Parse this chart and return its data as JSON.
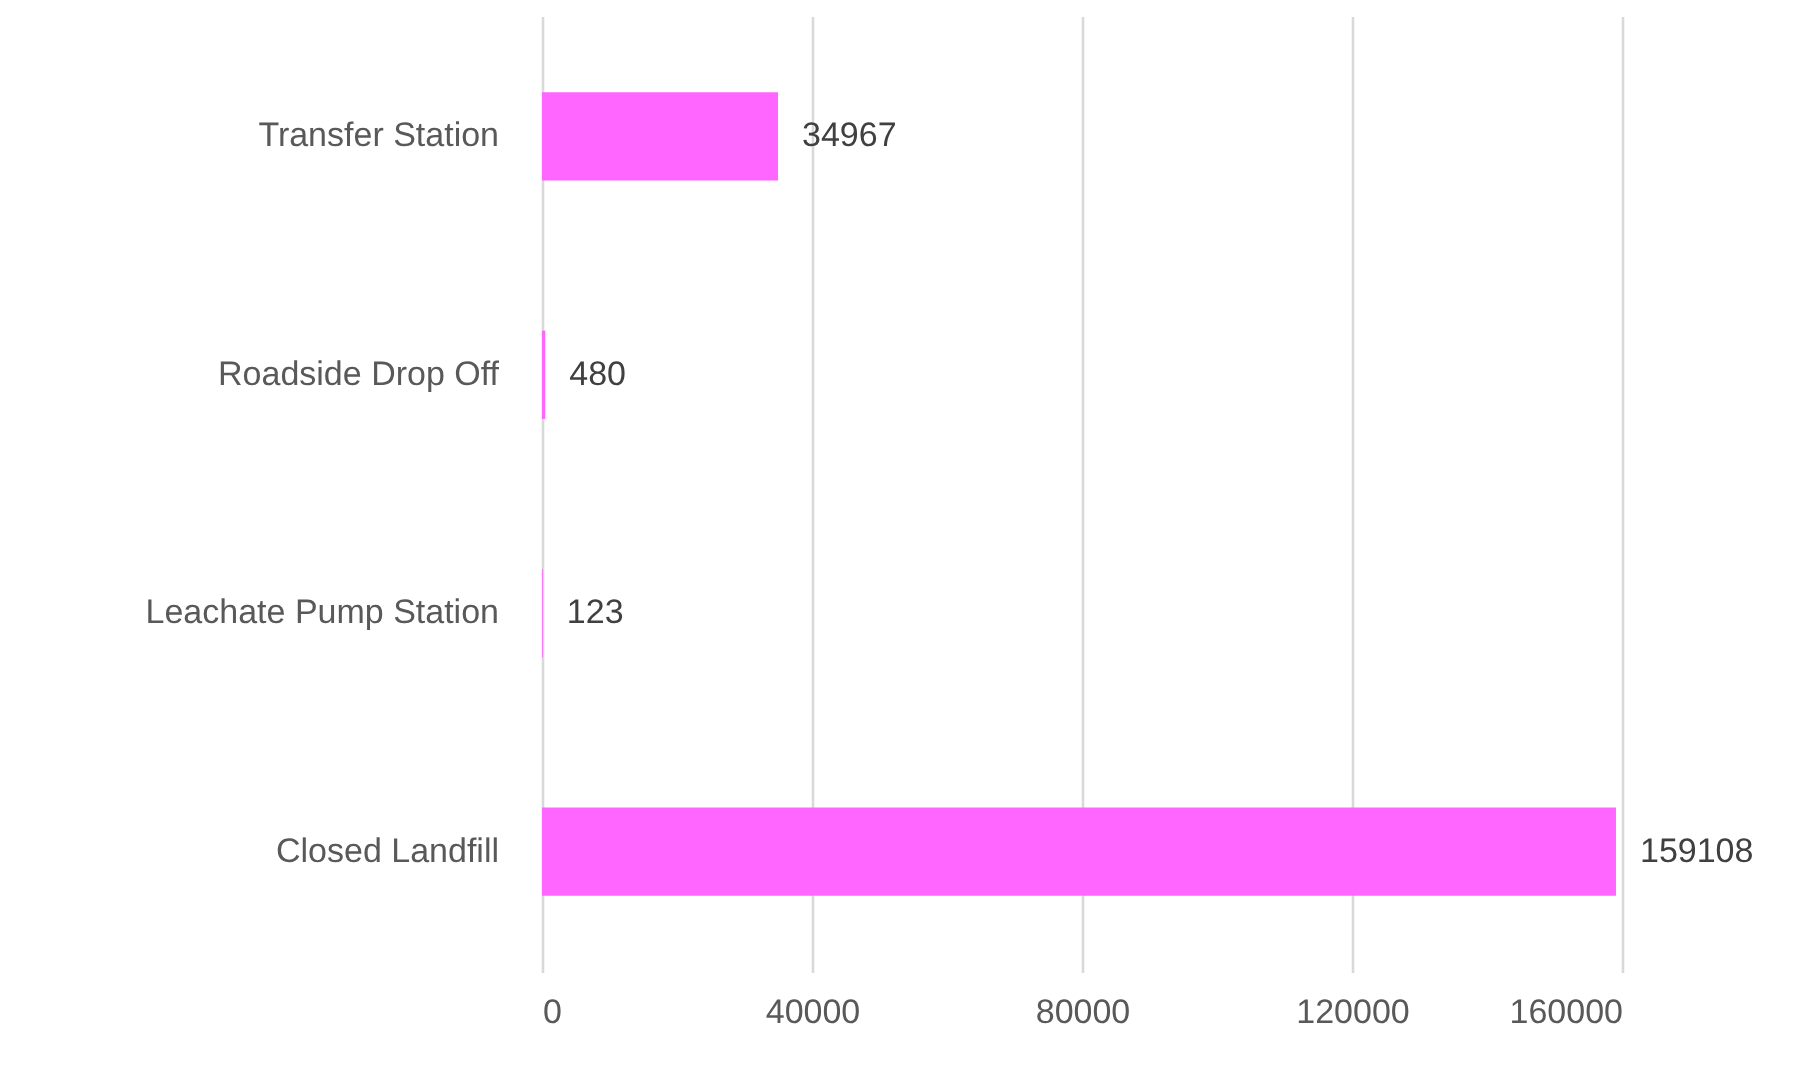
{
  "chart_data": {
    "type": "bar",
    "orientation": "horizontal",
    "categories": [
      "Transfer Station",
      "Roadside Drop Off",
      "Leachate Pump Station",
      "Closed Landfill"
    ],
    "values": [
      34967,
      480,
      123,
      159108
    ],
    "color": "#ff66ff",
    "xlim": [
      0,
      160000
    ],
    "xticks": [
      0,
      40000,
      80000,
      120000,
      160000
    ],
    "grid": "x",
    "data_labels": true
  }
}
